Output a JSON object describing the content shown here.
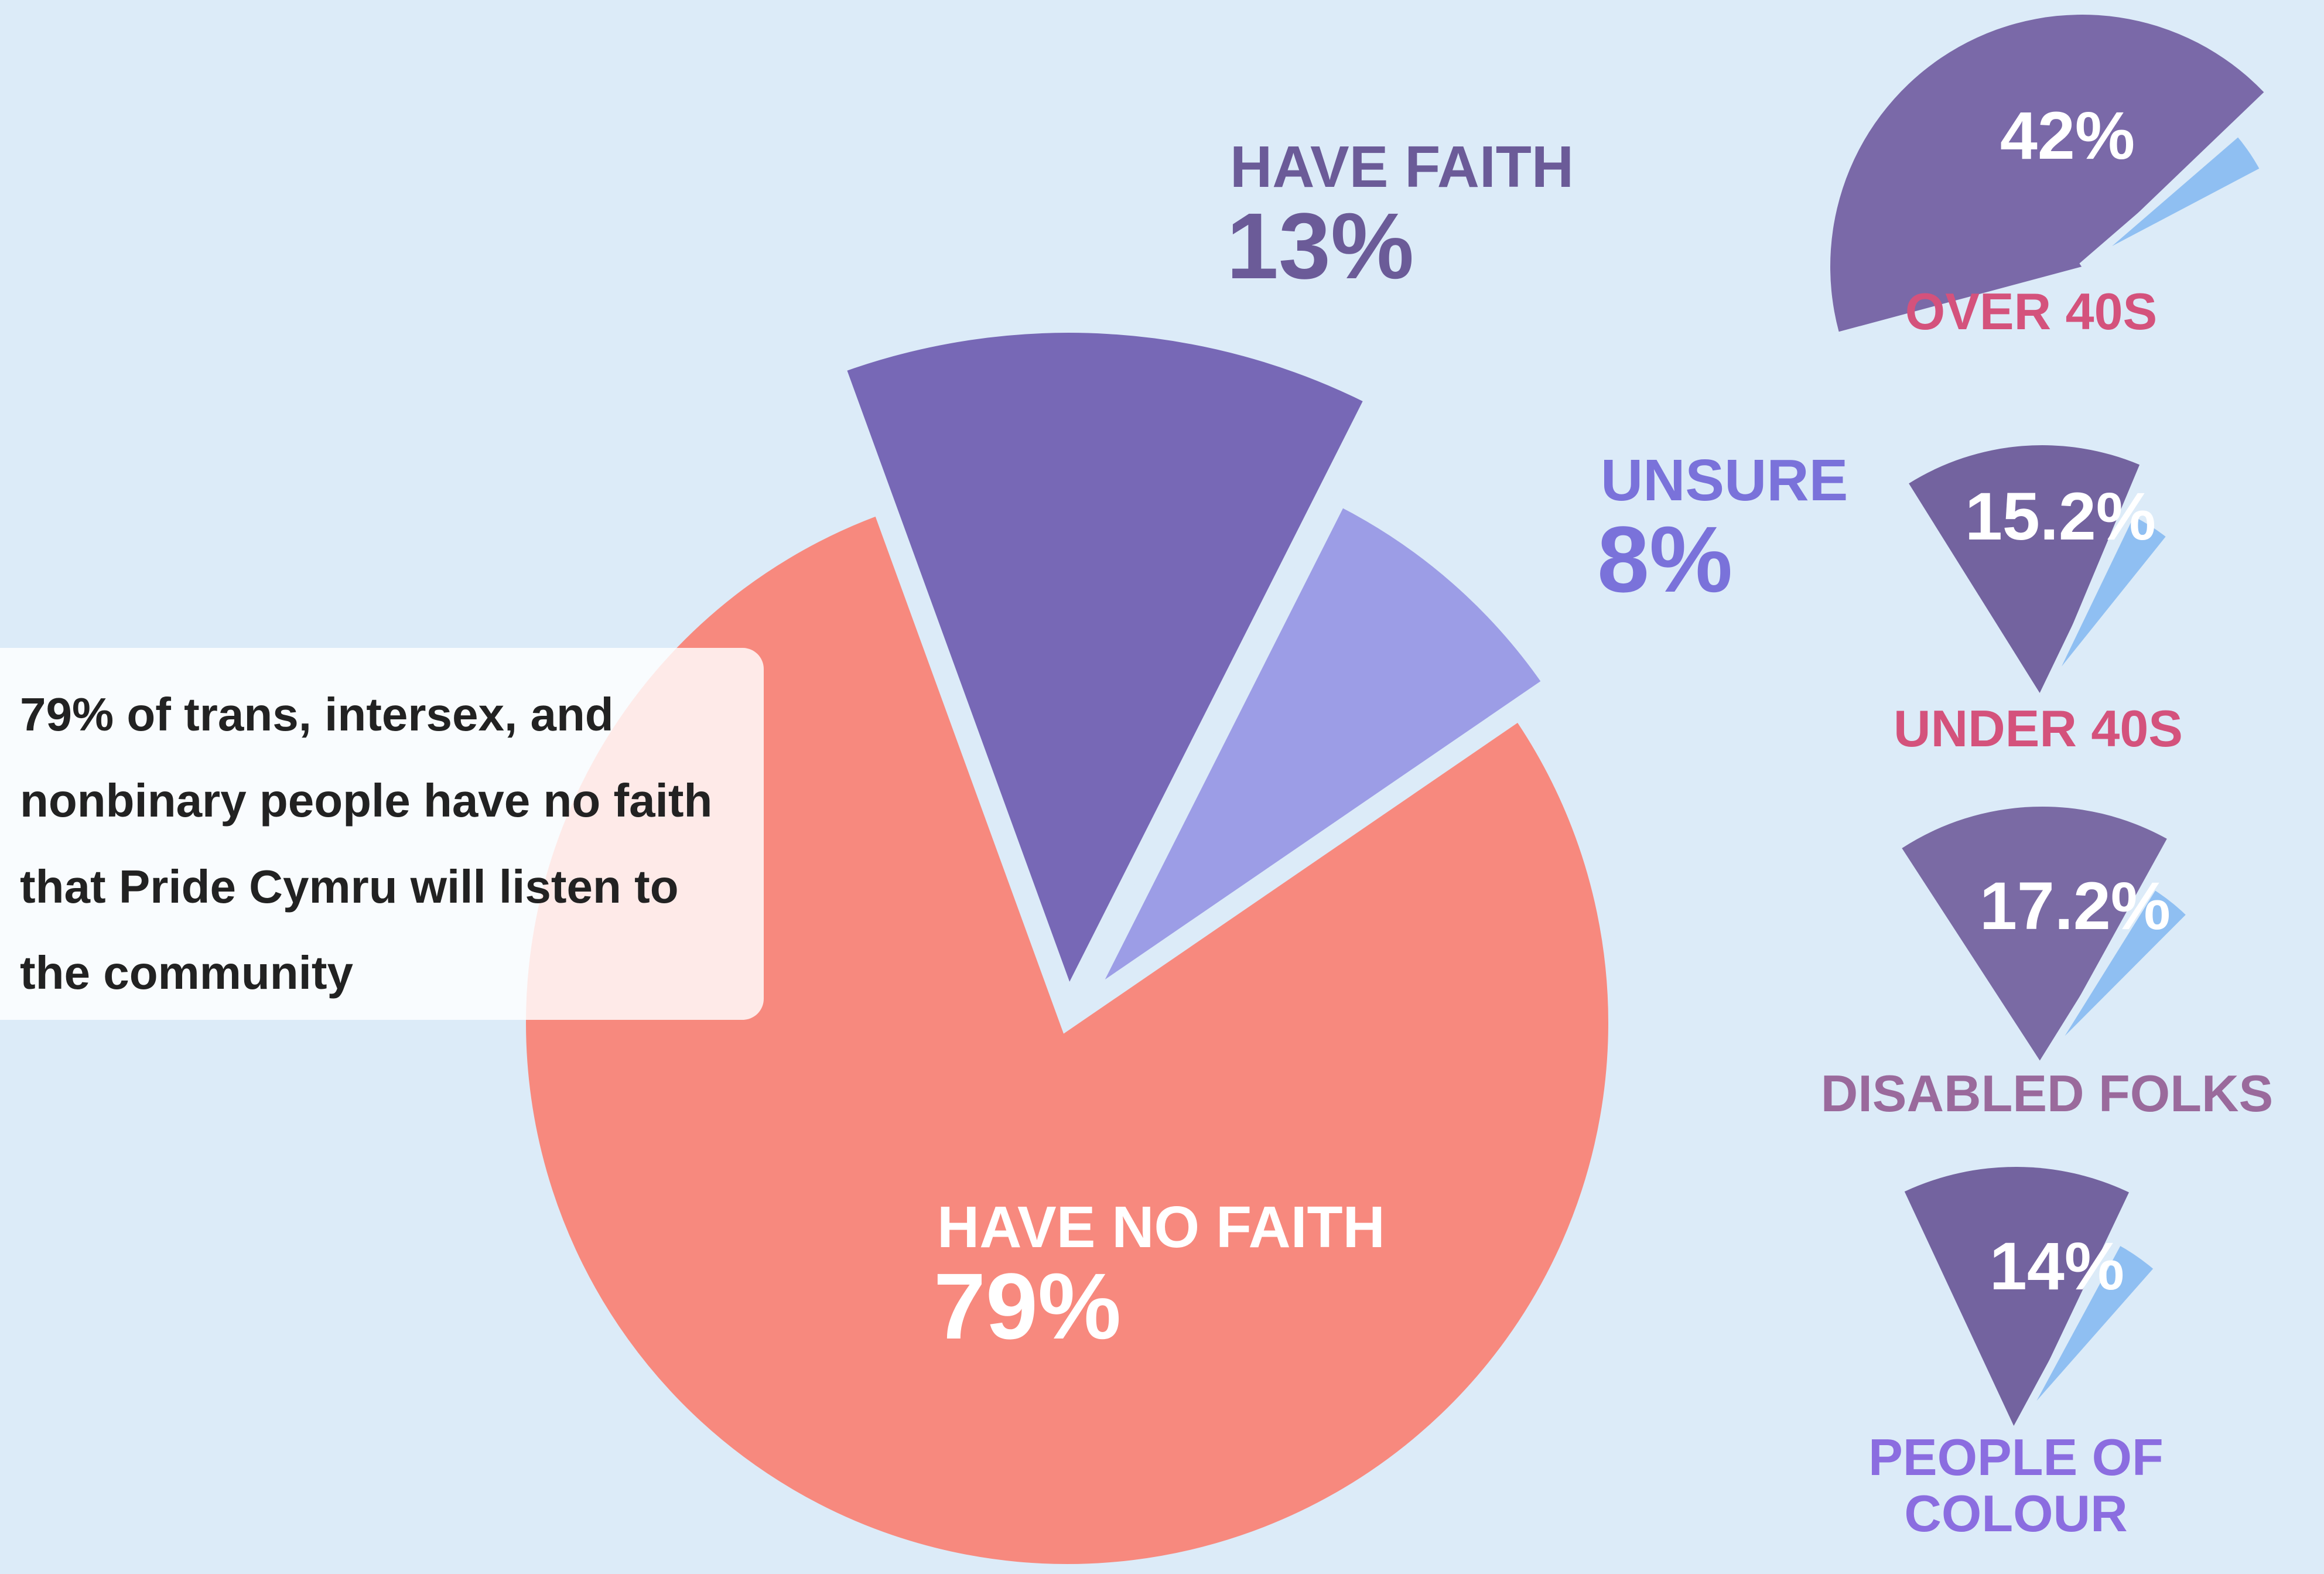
{
  "chart_data": [
    {
      "type": "pie",
      "categories": [
        "HAVE NO FAITH",
        "HAVE FAITH",
        "UNSURE"
      ],
      "values": [
        79,
        13,
        8
      ],
      "value_labels": [
        "79%",
        "13%",
        "8%"
      ],
      "colors": [
        "#f7897e",
        "#7768b6",
        "#9c9de6"
      ],
      "label_colors": [
        "#ffffff",
        "#6b5b98",
        "#7a72da"
      ],
      "annotation": "79% of trans, intersex, and nonbinary people have no faith that Pride Cymru will listen to the community"
    },
    {
      "type": "pie",
      "title": "OVER 40S",
      "values": [
        42
      ],
      "value_labels": [
        "42%"
      ],
      "color": "#7a69a8",
      "title_color": "#d4527c"
    },
    {
      "type": "pie",
      "title": "UNDER 40S",
      "values": [
        15.2
      ],
      "value_labels": [
        "15.2%"
      ],
      "color": "#73639f",
      "title_color": "#d4527c"
    },
    {
      "type": "pie",
      "title": "DISABLED FOLKS",
      "values": [
        17.2
      ],
      "value_labels": [
        "17.2%"
      ],
      "color": "#7a6aa4",
      "title_color": "#9a6a9c"
    },
    {
      "type": "pie",
      "title": "PEOPLE OF COLOUR",
      "values": [
        14
      ],
      "value_labels": [
        "14%"
      ],
      "color": "#73639f",
      "title_color": "#8b6de0"
    }
  ]
}
